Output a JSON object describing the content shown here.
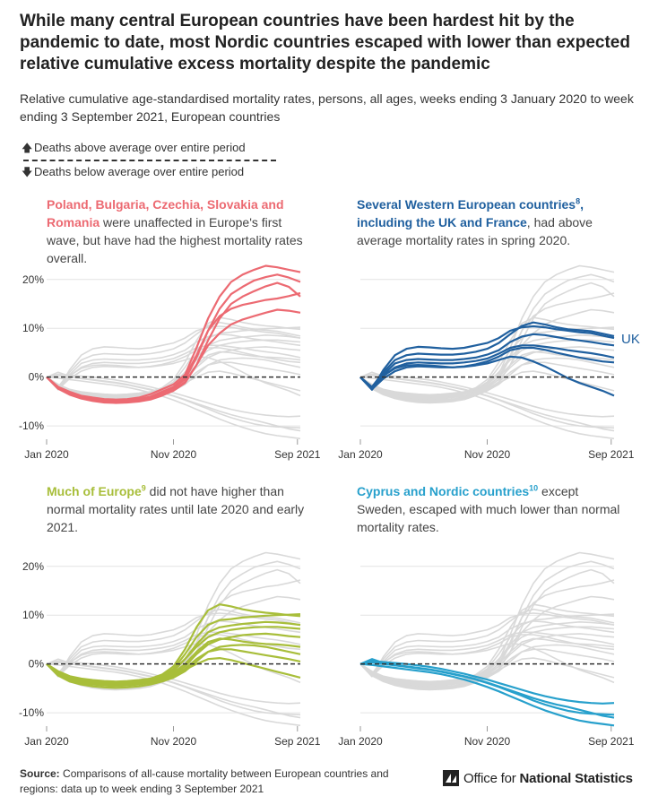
{
  "title": "While many central European countries have been hardest hit by the pandemic to date, most Nordic countries escaped with lower than expected relative cumulative excess mortality despite the pandemic",
  "subtitle": "Relative cumulative age-standardised mortality rates, persons, all ages, weeks ending 3 January 2020 to week ending 3 September 2021, European countries",
  "legend": {
    "above": "Deaths above average over entire period",
    "below": "Deaths below average over entire period",
    "above_icon": "arrow-up-icon",
    "below_icon": "arrow-down-icon"
  },
  "panels": [
    {
      "highlight": "Poland, Bulgaria, Czechia, Slovakia and Romania",
      "sup": "",
      "rest": " were unaffected in Europe's first wave, but have had the highest mortality rates overall.",
      "color": "#ec6a72"
    },
    {
      "highlight": "Several Western European countries",
      "sup": "8",
      "rest_bold": ", including the UK and France",
      "rest": ", had above average mortality rates in spring 2020.",
      "color": "#20609f",
      "label": "UK"
    },
    {
      "highlight": "Much of Europe",
      "sup": "9",
      "rest": " did not have higher than normal mortality rates until late 2020 and early 2021.",
      "color": "#a8be3a"
    },
    {
      "highlight": "Cyprus and Nordic countries",
      "sup": "10",
      "rest": " except Sweden, escaped with much lower than normal mortality rates.",
      "color": "#27a0cc"
    }
  ],
  "axes": {
    "x_ticks": [
      "Jan 2020",
      "Nov 2020",
      "Sep 2021"
    ],
    "y_ticks": [
      "20%",
      "10%",
      "0%",
      "-10%"
    ]
  },
  "source": {
    "label": "Source:",
    "text": " Comparisons of all-cause mortality between European countries and regions: data up to week ending 3 September 2021"
  },
  "logo": {
    "icon": "ons-logo-icon",
    "prefix": "Office for ",
    "strong": "National Statistics"
  },
  "chart_data": {
    "type": "line",
    "title": "While many central European countries have been hardest hit by the pandemic to date, most Nordic countries escaped with lower than expected relative cumulative excess mortality despite the pandemic",
    "xlabel": "",
    "ylabel": "",
    "x": [
      0,
      4,
      8,
      12,
      16,
      20,
      24,
      28,
      32,
      36,
      40,
      44,
      48,
      52,
      56,
      60,
      64,
      68,
      72,
      76,
      80,
      84,
      88
    ],
    "x_ticks": [
      "Jan 2020",
      "Nov 2020",
      "Sep 2021"
    ],
    "x_tick_positions": [
      0,
      44,
      87
    ],
    "ylim": [
      -12,
      24
    ],
    "y_ticks": [
      20,
      10,
      0,
      -10
    ],
    "grid": true,
    "reference_line": 0,
    "series": [
      {
        "group": 1,
        "values": [
          0,
          -2,
          -3,
          -3.8,
          -4.2,
          -4.5,
          -4.6,
          -4.5,
          -4.2,
          -3.5,
          -2.5,
          -1.5,
          0.5,
          6,
          12,
          16.5,
          19.5,
          21,
          22,
          22.8,
          22.5,
          22,
          21.5
        ]
      },
      {
        "group": 1,
        "values": [
          0,
          -2.2,
          -3.4,
          -4.2,
          -4.6,
          -4.9,
          -5.0,
          -4.9,
          -4.7,
          -4.2,
          -3.2,
          -2.2,
          -0.5,
          4,
          9.5,
          14,
          17,
          18.5,
          19.8,
          20.5,
          21,
          20.4,
          19.5
        ]
      },
      {
        "group": 1,
        "values": [
          0,
          -2.4,
          -3.6,
          -4.4,
          -4.9,
          -5.2,
          -5.3,
          -5.2,
          -5.0,
          -4.6,
          -3.8,
          -2.8,
          -1.2,
          2.5,
          7.5,
          12,
          15,
          16.5,
          17.6,
          18.6,
          19.3,
          18.5,
          16.5
        ]
      },
      {
        "group": 1,
        "values": [
          0,
          -2.1,
          -3.2,
          -4.0,
          -4.4,
          -4.7,
          -4.8,
          -4.7,
          -4.5,
          -4.0,
          -3.0,
          -2.0,
          0,
          4.5,
          9.5,
          12.5,
          14,
          14.8,
          15.3,
          15.8,
          16.1,
          16.6,
          17.2
        ]
      },
      {
        "group": 1,
        "values": [
          0,
          -2.3,
          -3.5,
          -4.3,
          -4.7,
          -5.0,
          -5.1,
          -5.0,
          -4.8,
          -4.4,
          -3.6,
          -2.6,
          -1.0,
          2.5,
          6.5,
          9,
          10.8,
          11.8,
          12.5,
          13.2,
          13.8,
          13.6,
          13.2
        ]
      },
      {
        "group": 2,
        "values": [
          0,
          -2.5,
          1.5,
          4.5,
          5.8,
          6.2,
          6.1,
          5.9,
          5.8,
          6.0,
          6.5,
          7.0,
          8.0,
          9.5,
          10.2,
          10.4,
          10.2,
          9.8,
          9.5,
          9.2,
          9.0,
          8.5,
          8.0
        ],
        "label": "UK"
      },
      {
        "group": 2,
        "values": [
          0,
          -2.0,
          1.0,
          3.5,
          4.5,
          4.8,
          4.7,
          4.6,
          4.6,
          4.8,
          5.2,
          5.8,
          7.0,
          8.8,
          10.5,
          11.2,
          10.8,
          10.2,
          9.8,
          9.6,
          9.4,
          8.9,
          8.4
        ]
      },
      {
        "group": 2,
        "values": [
          0,
          -2.6,
          0.5,
          2.8,
          3.5,
          3.7,
          3.6,
          3.5,
          3.5,
          3.7,
          4.0,
          4.6,
          5.5,
          7.2,
          8.3,
          8.8,
          8.6,
          8.2,
          7.8,
          7.5,
          7.2,
          6.8,
          6.5
        ]
      },
      {
        "group": 2,
        "values": [
          0,
          -2.3,
          0.2,
          2.0,
          2.8,
          3.0,
          2.9,
          2.8,
          2.8,
          3.0,
          3.3,
          3.8,
          4.8,
          6.0,
          6.5,
          6.5,
          6.2,
          5.9,
          5.5,
          5.2,
          4.9,
          4.5,
          4.0
        ]
      },
      {
        "group": 2,
        "values": [
          0,
          -2.5,
          -0.3,
          1.2,
          2.0,
          2.2,
          2.1,
          2.0,
          2.0,
          2.2,
          2.6,
          3.2,
          4.2,
          5.5,
          6.0,
          6.0,
          5.6,
          5.0,
          4.5,
          4.0,
          3.6,
          3.2,
          3.0
        ]
      },
      {
        "group": 2,
        "values": [
          0,
          -2.2,
          0.3,
          1.8,
          2.4,
          2.5,
          2.4,
          2.2,
          2.0,
          2.1,
          2.4,
          2.8,
          3.5,
          4.2,
          4.0,
          3.2,
          2.2,
          1.0,
          -0.2,
          -1.2,
          -2.0,
          -2.8,
          -3.8
        ]
      },
      {
        "group": 3,
        "values": [
          0,
          -1.5,
          -2.5,
          -3.0,
          -3.3,
          -3.5,
          -3.6,
          -3.5,
          -3.3,
          -3.0,
          -2.2,
          -0.5,
          3.0,
          7.5,
          11.0,
          12.2,
          11.8,
          11.2,
          10.8,
          10.5,
          10.3,
          10.0,
          9.8
        ]
      },
      {
        "group": 3,
        "values": [
          0,
          -1.8,
          -2.8,
          -3.3,
          -3.6,
          -3.8,
          -3.9,
          -3.8,
          -3.6,
          -3.2,
          -2.5,
          -1.0,
          2.0,
          5.5,
          8.0,
          9.0,
          9.2,
          9.5,
          9.7,
          9.9,
          10.0,
          10.1,
          10.2
        ]
      },
      {
        "group": 3,
        "values": [
          0,
          -2.0,
          -3.0,
          -3.6,
          -3.9,
          -4.1,
          -4.2,
          -4.1,
          -3.9,
          -3.5,
          -2.8,
          -1.5,
          1.0,
          4.0,
          6.5,
          7.5,
          7.9,
          8.2,
          8.4,
          8.6,
          8.5,
          8.3,
          8.0
        ]
      },
      {
        "group": 3,
        "values": [
          0,
          -1.6,
          -2.6,
          -3.1,
          -3.4,
          -3.6,
          -3.7,
          -3.6,
          -3.4,
          -3.1,
          -2.4,
          -1.2,
          1.0,
          3.5,
          5.5,
          6.5,
          7.0,
          7.3,
          7.5,
          7.6,
          7.6,
          7.4,
          7.2
        ]
      },
      {
        "group": 3,
        "values": [
          0,
          -2.2,
          -3.3,
          -3.9,
          -4.2,
          -4.4,
          -4.5,
          -4.4,
          -4.2,
          -3.8,
          -3.2,
          -2.2,
          -0.5,
          2.0,
          4.0,
          5.0,
          5.5,
          5.9,
          6.1,
          6.2,
          6.0,
          5.7,
          5.5
        ]
      },
      {
        "group": 3,
        "values": [
          0,
          -1.9,
          -2.9,
          -3.4,
          -3.7,
          -3.9,
          -4.0,
          -3.9,
          -3.7,
          -3.4,
          -2.8,
          -1.8,
          0,
          2.5,
          4.5,
          5.2,
          5.0,
          4.6,
          4.3,
          4.1,
          4.0,
          3.8,
          3.5
        ]
      },
      {
        "group": 3,
        "values": [
          0,
          -2.4,
          -3.6,
          -4.2,
          -4.6,
          -4.8,
          -4.9,
          -4.8,
          -4.6,
          -4.2,
          -3.6,
          -2.8,
          -1.5,
          0.5,
          2.5,
          3.5,
          3.8,
          3.9,
          3.8,
          3.5,
          3.0,
          2.5,
          2.0
        ]
      },
      {
        "group": 3,
        "values": [
          0,
          -2.1,
          -3.2,
          -3.8,
          -4.1,
          -4.3,
          -4.4,
          -4.3,
          -4.1,
          -3.8,
          -3.3,
          -2.5,
          -1.0,
          1.0,
          2.5,
          3.0,
          3.0,
          2.6,
          2.2,
          1.8,
          1.4,
          1.0,
          0.5
        ]
      },
      {
        "group": 3,
        "values": [
          0,
          -1.7,
          -2.7,
          -3.2,
          -3.5,
          -3.7,
          -3.8,
          -3.7,
          -3.6,
          -3.4,
          -3.0,
          -2.3,
          -1.2,
          0,
          1.0,
          1.2,
          0.8,
          0.2,
          -0.4,
          -1.0,
          -1.6,
          -2.2,
          -2.8
        ]
      },
      {
        "group": 4,
        "values": [
          0,
          0.6,
          0.4,
          0.2,
          0,
          -0.3,
          -0.6,
          -1.0,
          -1.5,
          -2.0,
          -2.6,
          -3.2,
          -3.9,
          -4.6,
          -5.3,
          -6.0,
          -6.6,
          -7.1,
          -7.5,
          -7.8,
          -8.0,
          -8.1,
          -8.0
        ]
      },
      {
        "group": 4,
        "values": [
          0,
          0.3,
          0,
          -0.3,
          -0.6,
          -0.9,
          -1.2,
          -1.6,
          -2.1,
          -2.6,
          -3.2,
          -3.9,
          -4.7,
          -5.6,
          -6.5,
          -7.5,
          -8.3,
          -9.0,
          -9.6,
          -10.0,
          -10.2,
          -10.3,
          -10.4
        ]
      },
      {
        "group": 4,
        "values": [
          0,
          1.0,
          0.2,
          -0.2,
          -0.5,
          -0.8,
          -1.1,
          -1.5,
          -2.0,
          -2.5,
          -3.1,
          -3.8,
          -4.6,
          -5.4,
          -6.2,
          -7.0,
          -7.7,
          -8.3,
          -8.8,
          -9.4,
          -10.0,
          -10.6,
          -11.0
        ]
      },
      {
        "group": 4,
        "values": [
          0,
          -0.2,
          -0.5,
          -0.8,
          -1.1,
          -1.4,
          -1.7,
          -2.1,
          -2.6,
          -3.2,
          -3.9,
          -4.7,
          -5.6,
          -6.6,
          -7.6,
          -8.6,
          -9.5,
          -10.3,
          -11.0,
          -11.6,
          -12.0,
          -12.3,
          -12.6
        ]
      }
    ]
  }
}
